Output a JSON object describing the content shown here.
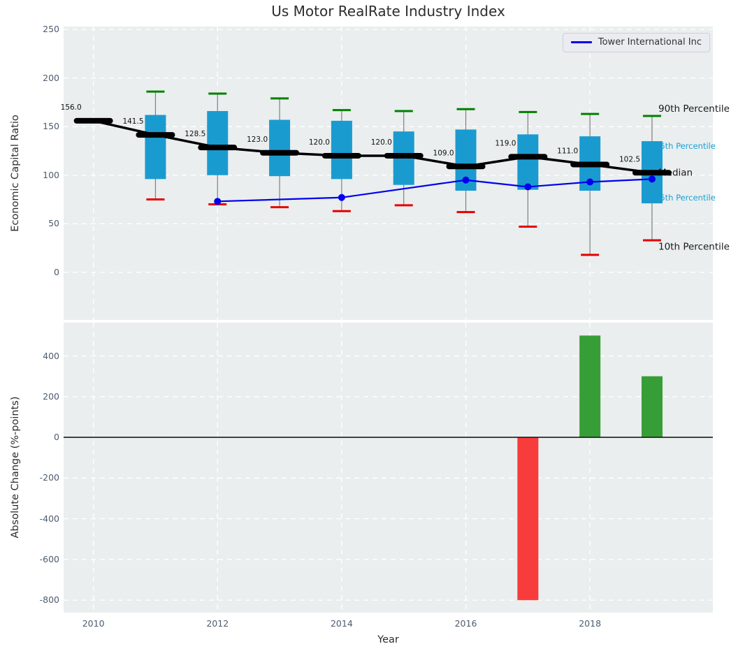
{
  "title": "Us Motor RealRate Industry Index",
  "legend": {
    "label": "Tower International Inc"
  },
  "colors": {
    "company_line": "#0000ee",
    "box_fill": "#1a9bd0",
    "whisker_line": "#7f7f7f",
    "whisker_high_cap": "#008000",
    "whisker_low_cap": "#e60000",
    "median_line": "#000000",
    "bar_positive": "#379e37",
    "bar_negative": "#f83c3c",
    "plot_background": "#eaeeee",
    "gridline": "#ffffff",
    "zero_line": "#1a1a1a",
    "tick_label": "#4c5b6e",
    "annotation": "#111111",
    "percentile_major_label": "#1a1a1a",
    "percentile_minor_label": "#18a0d8"
  },
  "chart_data": [
    {
      "type": "boxplot",
      "panel": "top",
      "title": "Us Motor RealRate Industry Index",
      "ylabel": "Economic Capital Ratio",
      "ylim": [
        -49,
        253
      ],
      "yticks": [
        250,
        200,
        150,
        100,
        50,
        0
      ],
      "xlim": [
        2009.52,
        2019.98
      ],
      "xticks": [
        2010,
        2012,
        2014,
        2016,
        2018
      ],
      "grid": "white dashed, on",
      "legend_position": "upper right",
      "years": [
        2010,
        2011,
        2012,
        2013,
        2014,
        2015,
        2016,
        2017,
        2018,
        2019
      ],
      "median": [
        156.0,
        141.5,
        128.5,
        123.0,
        120.0,
        120.0,
        109.0,
        119.0,
        111.0,
        102.5
      ],
      "q3": [
        null,
        162,
        166,
        157,
        156,
        145,
        147,
        142,
        140,
        135
      ],
      "q1": [
        null,
        96,
        100,
        99,
        96,
        90,
        84,
        85,
        84,
        71
      ],
      "p90": [
        null,
        186,
        184,
        179,
        167,
        166,
        168,
        165,
        163,
        161
      ],
      "p10": [
        null,
        75,
        70,
        67,
        63,
        69,
        62,
        47,
        18,
        33
      ],
      "median_labels": [
        "156.0",
        "141.5",
        "128.5",
        "123.0",
        "120.0",
        "120.0",
        "109.0",
        "119.0",
        "111.0",
        "102.5"
      ],
      "percentile_labels": [
        {
          "text": "90th Percentile",
          "v": 169,
          "style": "major"
        },
        {
          "text": "75th Percentile",
          "v": 130,
          "style": "minor"
        },
        {
          "text": "Median",
          "v": 103,
          "style": "major"
        },
        {
          "text": "25th Percentile",
          "v": 77,
          "style": "minor"
        },
        {
          "text": "10th Percentile",
          "v": 27,
          "style": "major"
        }
      ],
      "series": [
        {
          "name": "Tower International Inc",
          "x": [
            2012,
            2014,
            2016,
            2017,
            2018,
            2019
          ],
          "y": [
            73,
            77,
            95,
            88,
            93,
            96
          ],
          "marker": "circle"
        }
      ]
    },
    {
      "type": "bar",
      "panel": "bottom",
      "ylabel": "Absolute Change (%-points)",
      "xlabel": "Year",
      "ylim": [
        -861,
        563
      ],
      "yticks": [
        400,
        200,
        0,
        -200,
        -400,
        -600,
        -800
      ],
      "xlim": [
        2009.52,
        2019.98
      ],
      "xticks": [
        2010,
        2012,
        2014,
        2016,
        2018
      ],
      "grid": "white dashed, on",
      "zero_line": true,
      "x": [
        2017,
        2018,
        2019
      ],
      "values": [
        -800,
        500,
        300
      ]
    }
  ]
}
